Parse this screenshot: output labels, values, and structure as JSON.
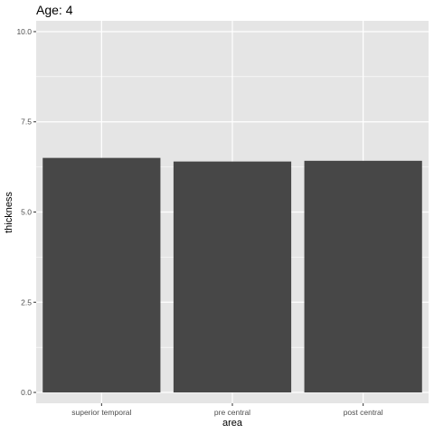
{
  "chart_data": {
    "type": "bar",
    "title": "Age: 4",
    "xlabel": "area",
    "ylabel": "thickness",
    "categories": [
      "superior temporal",
      "pre central",
      "post central"
    ],
    "values": [
      6.5,
      6.4,
      6.42
    ],
    "ylim": [
      -0.3,
      10.3
    ],
    "yticks": [
      0,
      2.5,
      5,
      7.5,
      10
    ],
    "ytick_labels": [
      "0.0",
      "2.5",
      "5.0",
      "7.5",
      "10.0"
    ],
    "grid": true,
    "bar_color": "#474747",
    "panel_color": "#e5e5e5",
    "grid_color": "#ffffff"
  }
}
